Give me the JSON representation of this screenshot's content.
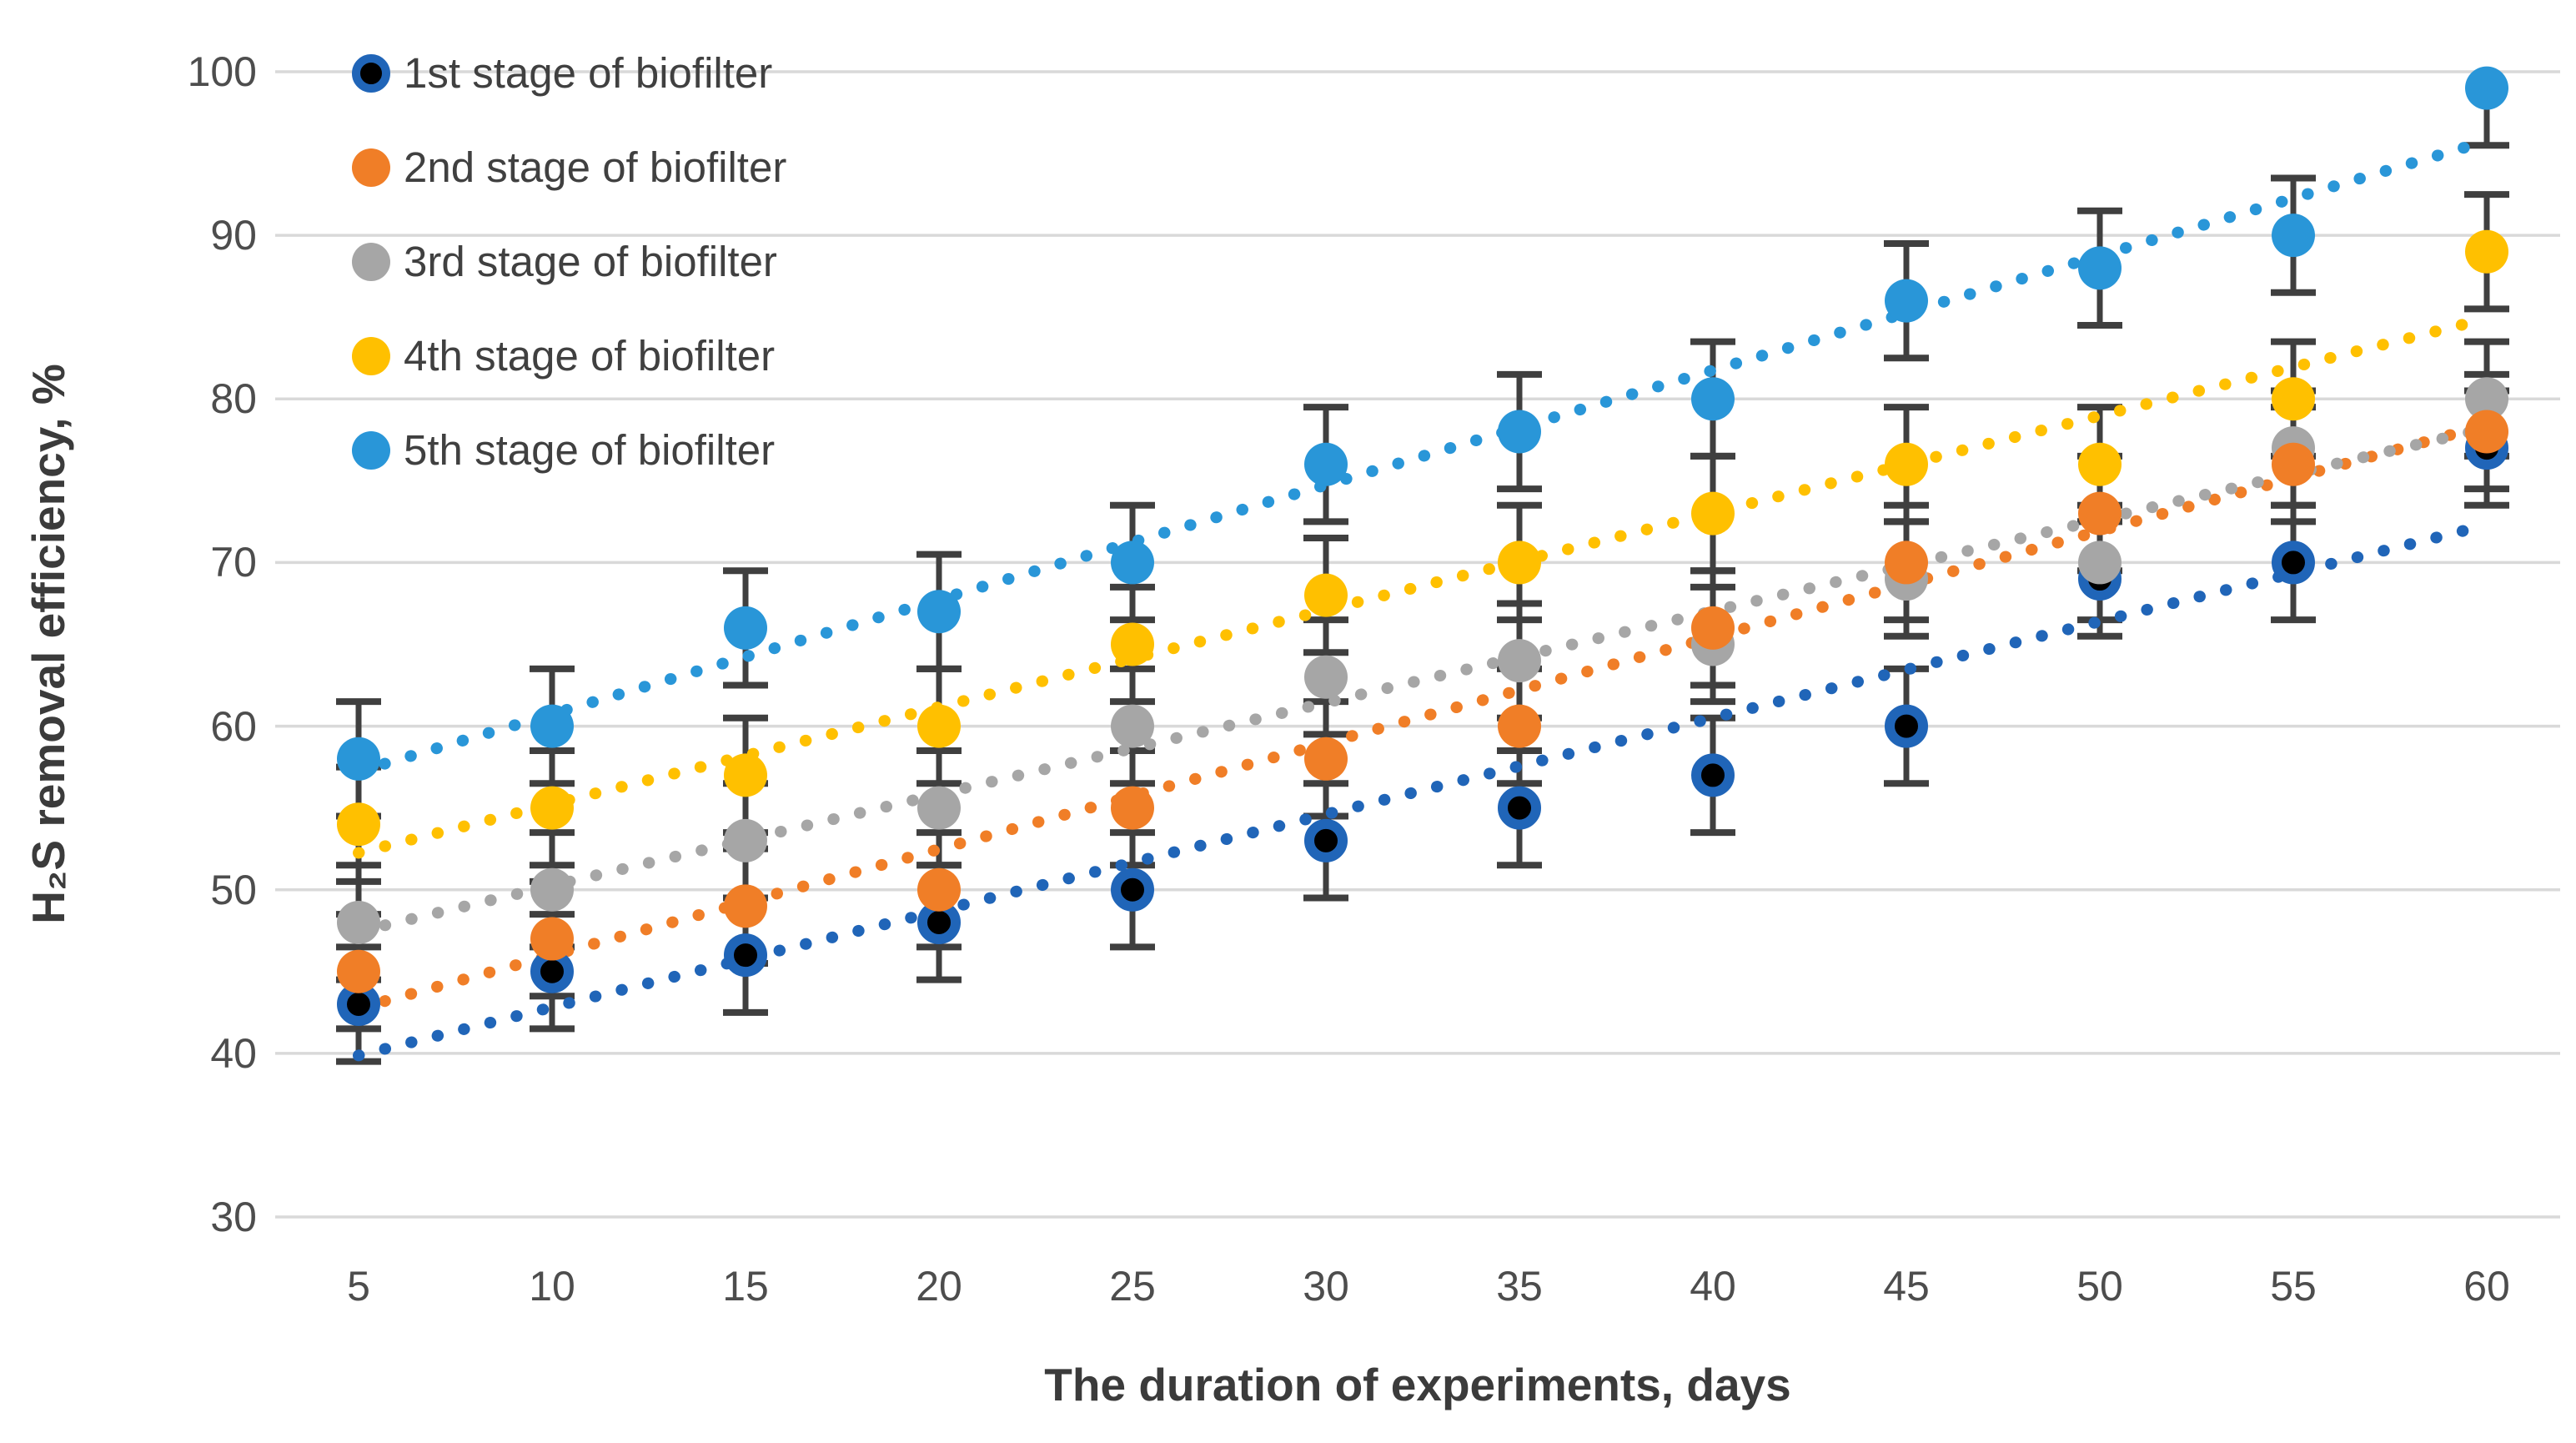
{
  "page": {
    "background": "#ffffff"
  },
  "chart_data": {
    "type": "scatter",
    "title": "",
    "xlabel": "The duration of experiments, days",
    "ylabel": "H₂S removal efficiency, %",
    "x": [
      5,
      10,
      15,
      20,
      25,
      30,
      35,
      40,
      45,
      50,
      55,
      60
    ],
    "ylim": [
      30,
      100
    ],
    "yticks": [
      30,
      40,
      50,
      60,
      70,
      80,
      90,
      100
    ],
    "grid": "horizontal",
    "legend_position": "top-left",
    "trendline": "linear-dotted",
    "error_bar": 3.5,
    "series": [
      {
        "name": "1st stage of biofilter",
        "marker_color": "#000000",
        "marker_ring": "#2065b8",
        "trend_color": "#2065b8",
        "values": [
          43,
          45,
          46,
          48,
          50,
          53,
          55,
          57,
          60,
          69,
          70,
          77
        ]
      },
      {
        "name": "2nd stage of biofilter",
        "marker_color": "#f07e27",
        "trend_color": "#f07e27",
        "values": [
          45,
          47,
          49,
          50,
          55,
          58,
          60,
          66,
          70,
          73,
          76,
          78
        ]
      },
      {
        "name": "3rd stage of biofilter",
        "marker_color": "#a6a6a6",
        "trend_color": "#a6a6a6",
        "values": [
          48,
          50,
          53,
          55,
          60,
          63,
          64,
          65,
          69,
          70,
          77,
          80
        ]
      },
      {
        "name": "4th stage of biofilter",
        "marker_color": "#ffc000",
        "trend_color": "#ffc000",
        "values": [
          54,
          55,
          57,
          60,
          65,
          68,
          70,
          73,
          76,
          76,
          80,
          89
        ]
      },
      {
        "name": "5th stage of biofilter",
        "marker_color": "#2996d8",
        "trend_color": "#2996d8",
        "values": [
          58,
          60,
          66,
          67,
          70,
          76,
          78,
          80,
          86,
          88,
          90,
          99
        ]
      }
    ],
    "style": {
      "grid_color": "#d9d9d9",
      "error_bar_color": "#3f3f3f",
      "tick_text_color": "#4d4d4d",
      "legend_text_color": "#404040",
      "axis_title_color": "#3b3b3b"
    }
  }
}
